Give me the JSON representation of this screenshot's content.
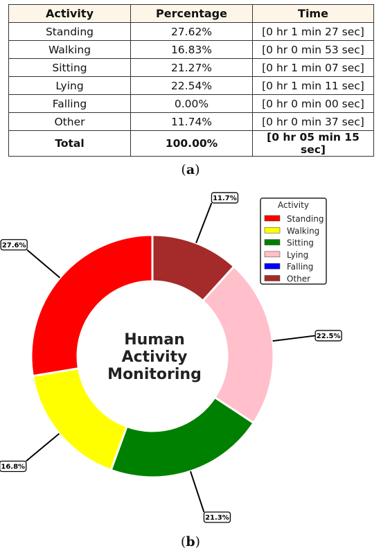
{
  "table": {
    "headers": [
      "Activity",
      "Percentage",
      "Time"
    ],
    "rows": [
      [
        "Standing",
        "27.62%",
        "[0 hr 1 min 27 sec]"
      ],
      [
        "Walking",
        "16.83%",
        "[0 hr 0 min 53 sec]"
      ],
      [
        "Sitting",
        "21.27%",
        "[0 hr 1 min 07 sec]"
      ],
      [
        "Lying",
        "22.54%",
        "[0 hr 1 min 11 sec]"
      ],
      [
        "Falling",
        "0.00%",
        "[0 hr 0 min 00 sec]"
      ],
      [
        "Other",
        "11.74%",
        "[0 hr 0 min 37 sec]"
      ]
    ],
    "total": [
      "Total",
      "100.00%",
      "[0 hr 05 min 15 sec]"
    ]
  },
  "captions": {
    "a": "a",
    "b": "b"
  },
  "chart_data": {
    "type": "pie",
    "variant": "donut",
    "center_title": [
      "Human",
      "Activity",
      "Monitoring"
    ],
    "legend_title": "Activity",
    "legend_position": "top-right",
    "categories": [
      "Standing",
      "Walking",
      "Sitting",
      "Lying",
      "Falling",
      "Other"
    ],
    "values": [
      27.62,
      16.83,
      21.27,
      22.54,
      0.0,
      11.74
    ],
    "labels": [
      "27.6%",
      "16.8%",
      "21.3%",
      "22.5%",
      "",
      "11.7%"
    ],
    "colors": [
      "#ff0000",
      "#ffff00",
      "#008000",
      "#ffc0cb",
      "#0000ff",
      "#a52a2a"
    ],
    "start_angle_deg": 90,
    "direction": "counterclockwise"
  }
}
